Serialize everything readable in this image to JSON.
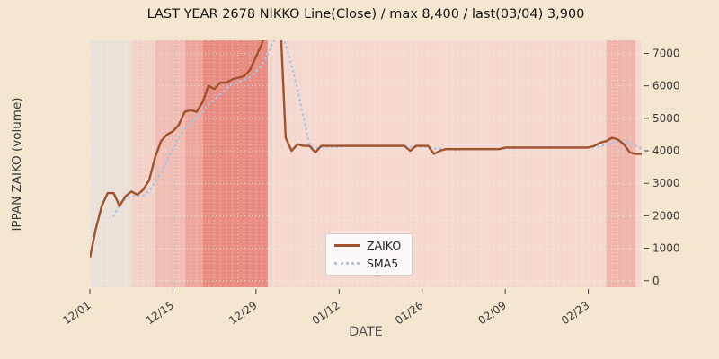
{
  "chart_data": {
    "type": "line",
    "title": "LAST YEAR 2678 NIKKO Line(Close) / max 8,400 / last(03/04) 3,900",
    "xlabel": "DATE",
    "ylabel": "IPPAN ZAIKO (volume)",
    "legend_position": "lower center",
    "grid": "white dotted vertical daily lines and horizontal lines on pink shaded background",
    "max_value": 8400,
    "last_point": {
      "date": "03/04",
      "value": 3900
    },
    "x_ticks": [
      {
        "label": "12/01",
        "index": 0
      },
      {
        "label": "12/15",
        "index": 14
      },
      {
        "label": "12/29",
        "index": 28
      },
      {
        "label": "01/12",
        "index": 42
      },
      {
        "label": "01/26",
        "index": 56
      },
      {
        "label": "02/09",
        "index": 70
      },
      {
        "label": "02/23",
        "index": 84
      }
    ],
    "y_ticks": [
      0,
      1000,
      2000,
      3000,
      4000,
      5000,
      6000,
      7000
    ],
    "ylim_visible": [
      -200,
      7400
    ],
    "series": [
      {
        "name": "ZAIKO",
        "color": "#a0522d",
        "style": "solid",
        "values": [
          700,
          1600,
          2300,
          2700,
          2700,
          2300,
          2600,
          2750,
          2650,
          2800,
          3100,
          3800,
          4300,
          4500,
          4600,
          4800,
          5200,
          5250,
          5200,
          5500,
          6000,
          5900,
          6100,
          6100,
          6200,
          6250,
          6300,
          6500,
          6900,
          7300,
          7900,
          8400,
          8400,
          4400,
          4000,
          4200,
          4150,
          4150,
          3950,
          4150,
          4150,
          4150,
          4150,
          4150,
          4150,
          4150,
          4150,
          4150,
          4150,
          4150,
          4150,
          4150,
          4150,
          4150,
          4000,
          4150,
          4150,
          4150,
          3900,
          4000,
          4050,
          4050,
          4050,
          4050,
          4050,
          4050,
          4050,
          4050,
          4050,
          4050,
          4100,
          4100,
          4100,
          4100,
          4100,
          4100,
          4100,
          4100,
          4100,
          4100,
          4100,
          4100,
          4100,
          4100,
          4100,
          4150,
          4250,
          4300,
          4400,
          4350,
          4200,
          3950,
          3900,
          3900
        ]
      },
      {
        "name": "SMA5",
        "color": "#a6c5e6",
        "style": "dotted",
        "derived_from": "ZAIKO",
        "window": 5
      }
    ],
    "background_bands": [
      {
        "from": 0,
        "to": 7,
        "color": "#eae2d8"
      },
      {
        "from": 7,
        "to": 11,
        "color": "#f3d2ca"
      },
      {
        "from": 11,
        "to": 16,
        "color": "#f0bdb4"
      },
      {
        "from": 16,
        "to": 19,
        "color": "#eda79d"
      },
      {
        "from": 19,
        "to": 30,
        "color": "#e98d83"
      },
      {
        "from": 30,
        "to": 87,
        "color": "#f5d8d0"
      },
      {
        "from": 87,
        "to": 92,
        "color": "#eeb6ac"
      },
      {
        "from": 92,
        "to": 93,
        "color": "#f5d8d0"
      }
    ]
  }
}
